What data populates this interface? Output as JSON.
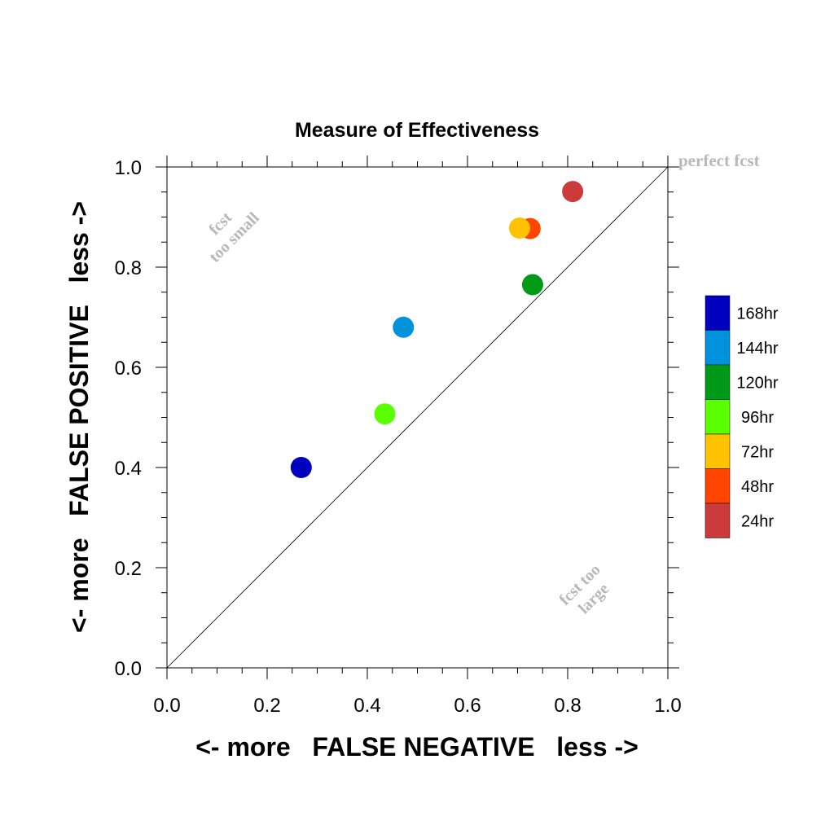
{
  "chart_data": {
    "type": "scatter",
    "title": "Measure of Effectiveness",
    "xlabel": "<- more   FALSE NEGATIVE   less ->",
    "ylabel": "<- more   FALSE POSITIVE   less ->",
    "xlim": [
      0.0,
      1.0
    ],
    "ylim": [
      0.0,
      1.0
    ],
    "x_ticks": [
      "0.0",
      "0.2",
      "0.4",
      "0.6",
      "0.8",
      "1.0"
    ],
    "y_ticks": [
      "0.0",
      "0.2",
      "0.4",
      "0.6",
      "0.8",
      "1.0"
    ],
    "grid": false,
    "diagonal_line": true,
    "annotations": {
      "perfect": "perfect fcst",
      "too_small_line1": "fcst",
      "too_small_line2": "too small",
      "too_large_line1": "fcst too",
      "too_large_line2": "large"
    },
    "legend_position": "right",
    "series": [
      {
        "name": "168hr",
        "color": "#0000bf",
        "x": 0.268,
        "y": 0.4
      },
      {
        "name": "144hr",
        "color": "#0093dc",
        "x": 0.472,
        "y": 0.68
      },
      {
        "name": "120hr",
        "color": "#009a18",
        "x": 0.73,
        "y": 0.765
      },
      {
        "name": "96hr",
        "color": "#5aff00",
        "x": 0.435,
        "y": 0.507
      },
      {
        "name": "72hr",
        "color": "#ffc200",
        "x": 0.704,
        "y": 0.878
      },
      {
        "name": "48hr",
        "color": "#ff4500",
        "x": 0.725,
        "y": 0.877
      },
      {
        "name": "24hr",
        "color": "#cc3b3b",
        "x": 0.81,
        "y": 0.951
      }
    ],
    "draw_order": [
      "168hr",
      "144hr",
      "120hr",
      "96hr",
      "48hr",
      "72hr",
      "24hr"
    ]
  }
}
